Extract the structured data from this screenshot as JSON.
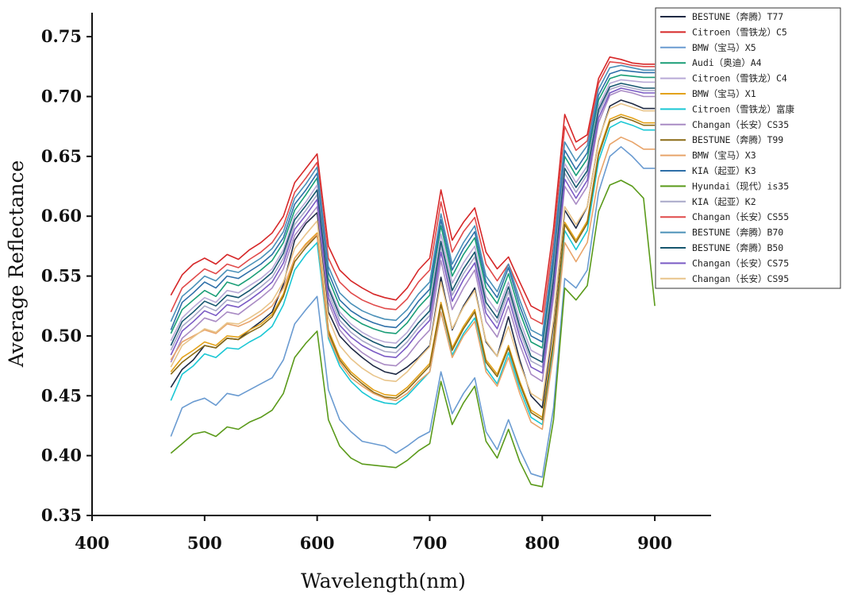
{
  "chart_data": {
    "type": "line",
    "title": "",
    "xlabel": "Wavelength(nm)",
    "ylabel": "Average Reflectance",
    "xlim": [
      400,
      950
    ],
    "ylim": [
      0.35,
      0.77
    ],
    "xticks": [
      "400",
      "500",
      "600",
      "700",
      "800",
      "900"
    ],
    "yticks": [
      "0.35",
      "0.40",
      "0.45",
      "0.50",
      "0.55",
      "0.60",
      "0.65",
      "0.70",
      "0.75"
    ],
    "legend_position": "top-right",
    "grid": false,
    "x": [
      470,
      480,
      490,
      500,
      510,
      520,
      530,
      540,
      550,
      560,
      570,
      580,
      590,
      600,
      610,
      620,
      630,
      640,
      650,
      660,
      670,
      680,
      690,
      700,
      710,
      720,
      730,
      740,
      750,
      760,
      770,
      780,
      790,
      800,
      810,
      820,
      830,
      840,
      850,
      860,
      870,
      880,
      890,
      900
    ],
    "series": [
      {
        "name": "BESTUNE（奔腾）T77",
        "color": "#1f2a44",
        "values": [
          0.457,
          0.472,
          0.48,
          0.492,
          0.49,
          0.498,
          0.497,
          0.505,
          0.512,
          0.52,
          0.543,
          0.58,
          0.594,
          0.603,
          0.52,
          0.5,
          0.49,
          0.482,
          0.475,
          0.47,
          0.468,
          0.474,
          0.482,
          0.492,
          0.549,
          0.505,
          0.525,
          0.54,
          0.495,
          0.483,
          0.516,
          0.48,
          0.45,
          0.44,
          0.51,
          0.605,
          0.59,
          0.608,
          0.663,
          0.692,
          0.697,
          0.694,
          0.69,
          0.69
        ]
      },
      {
        "name": "Citroen（雪铁龙）C5",
        "color": "#d62728",
        "values": [
          0.534,
          0.551,
          0.56,
          0.565,
          0.56,
          0.568,
          0.564,
          0.572,
          0.578,
          0.586,
          0.6,
          0.628,
          0.64,
          0.652,
          0.575,
          0.555,
          0.546,
          0.54,
          0.535,
          0.532,
          0.53,
          0.54,
          0.555,
          0.565,
          0.622,
          0.58,
          0.595,
          0.607,
          0.57,
          0.556,
          0.566,
          0.545,
          0.525,
          0.52,
          0.59,
          0.685,
          0.662,
          0.668,
          0.715,
          0.733,
          0.731,
          0.728,
          0.727,
          0.727
        ]
      },
      {
        "name": "BMW（宝马）X5",
        "color": "#6a9bd1",
        "values": [
          0.416,
          0.44,
          0.445,
          0.448,
          0.442,
          0.452,
          0.45,
          0.455,
          0.46,
          0.465,
          0.48,
          0.51,
          0.522,
          0.533,
          0.455,
          0.43,
          0.42,
          0.412,
          0.41,
          0.408,
          0.402,
          0.408,
          0.415,
          0.42,
          0.47,
          0.435,
          0.452,
          0.465,
          0.42,
          0.405,
          0.43,
          0.405,
          0.385,
          0.382,
          0.44,
          0.548,
          0.54,
          0.555,
          0.62,
          0.65,
          0.658,
          0.65,
          0.64,
          0.64
        ]
      },
      {
        "name": "Audi（奥迪）A4",
        "color": "#1a9e77",
        "values": [
          0.502,
          0.522,
          0.53,
          0.538,
          0.533,
          0.545,
          0.542,
          0.548,
          0.555,
          0.563,
          0.578,
          0.605,
          0.618,
          0.632,
          0.548,
          0.525,
          0.516,
          0.51,
          0.506,
          0.503,
          0.502,
          0.511,
          0.524,
          0.534,
          0.592,
          0.55,
          0.568,
          0.582,
          0.54,
          0.527,
          0.552,
          0.52,
          0.495,
          0.49,
          0.56,
          0.65,
          0.634,
          0.648,
          0.697,
          0.715,
          0.718,
          0.717,
          0.716,
          0.716
        ]
      },
      {
        "name": "Citroen（雪铁龙）C4",
        "color": "#b8a9d6",
        "values": [
          0.496,
          0.515,
          0.524,
          0.532,
          0.528,
          0.538,
          0.536,
          0.542,
          0.548,
          0.556,
          0.572,
          0.6,
          0.612,
          0.626,
          0.542,
          0.52,
          0.51,
          0.503,
          0.498,
          0.495,
          0.494,
          0.503,
          0.516,
          0.526,
          0.585,
          0.544,
          0.561,
          0.575,
          0.533,
          0.52,
          0.545,
          0.513,
          0.488,
          0.483,
          0.553,
          0.644,
          0.628,
          0.642,
          0.692,
          0.711,
          0.714,
          0.713,
          0.712,
          0.712
        ]
      },
      {
        "name": "BMW（宝马）X1",
        "color": "#e3a21a",
        "values": [
          0.47,
          0.482,
          0.488,
          0.495,
          0.492,
          0.5,
          0.499,
          0.505,
          0.51,
          0.518,
          0.535,
          0.565,
          0.577,
          0.586,
          0.505,
          0.482,
          0.47,
          0.462,
          0.455,
          0.451,
          0.45,
          0.457,
          0.467,
          0.477,
          0.528,
          0.49,
          0.508,
          0.522,
          0.48,
          0.468,
          0.492,
          0.462,
          0.438,
          0.432,
          0.498,
          0.595,
          0.58,
          0.596,
          0.653,
          0.681,
          0.685,
          0.682,
          0.678,
          0.678
        ]
      },
      {
        "name": "Citroen（雪铁龙）富康",
        "color": "#1ac7d4",
        "values": [
          0.446,
          0.468,
          0.475,
          0.485,
          0.482,
          0.49,
          0.489,
          0.495,
          0.5,
          0.508,
          0.526,
          0.555,
          0.568,
          0.578,
          0.498,
          0.475,
          0.462,
          0.453,
          0.447,
          0.444,
          0.443,
          0.45,
          0.46,
          0.47,
          0.52,
          0.484,
          0.502,
          0.515,
          0.473,
          0.46,
          0.486,
          0.456,
          0.432,
          0.426,
          0.49,
          0.588,
          0.572,
          0.588,
          0.646,
          0.674,
          0.679,
          0.676,
          0.672,
          0.672
        ]
      },
      {
        "name": "Changan（长安）CS35",
        "color": "#a98bc4",
        "values": [
          0.478,
          0.498,
          0.506,
          0.515,
          0.512,
          0.52,
          0.518,
          0.525,
          0.532,
          0.54,
          0.556,
          0.584,
          0.596,
          0.608,
          0.528,
          0.505,
          0.494,
          0.486,
          0.48,
          0.476,
          0.475,
          0.483,
          0.495,
          0.505,
          0.563,
          0.522,
          0.54,
          0.555,
          0.512,
          0.499,
          0.525,
          0.493,
          0.468,
          0.462,
          0.532,
          0.625,
          0.61,
          0.625,
          0.678,
          0.701,
          0.705,
          0.703,
          0.7,
          0.7
        ]
      },
      {
        "name": "BESTUNE（奔腾）T99",
        "color": "#8b6b16",
        "values": [
          0.468,
          0.478,
          0.485,
          0.492,
          0.49,
          0.498,
          0.497,
          0.503,
          0.508,
          0.516,
          0.533,
          0.562,
          0.574,
          0.584,
          0.503,
          0.48,
          0.468,
          0.46,
          0.453,
          0.449,
          0.448,
          0.455,
          0.465,
          0.475,
          0.526,
          0.488,
          0.506,
          0.52,
          0.478,
          0.466,
          0.49,
          0.46,
          0.436,
          0.43,
          0.496,
          0.593,
          0.578,
          0.594,
          0.651,
          0.679,
          0.683,
          0.68,
          0.676,
          0.676
        ]
      },
      {
        "name": "BMW（宝马）X3",
        "color": "#e8a46a",
        "values": [
          0.48,
          0.495,
          0.5,
          0.505,
          0.502,
          0.51,
          0.508,
          0.512,
          0.518,
          0.525,
          0.54,
          0.565,
          0.576,
          0.585,
          0.5,
          0.478,
          0.465,
          0.458,
          0.452,
          0.448,
          0.446,
          0.452,
          0.462,
          0.47,
          0.52,
          0.482,
          0.5,
          0.512,
          0.47,
          0.458,
          0.482,
          0.452,
          0.428,
          0.422,
          0.485,
          0.578,
          0.562,
          0.578,
          0.632,
          0.66,
          0.666,
          0.662,
          0.656,
          0.656
        ]
      },
      {
        "name": "KIA（起亚）K3",
        "color": "#2e6fa8",
        "values": [
          0.505,
          0.528,
          0.536,
          0.545,
          0.54,
          0.55,
          0.548,
          0.554,
          0.56,
          0.568,
          0.582,
          0.61,
          0.622,
          0.636,
          0.553,
          0.53,
          0.521,
          0.515,
          0.511,
          0.508,
          0.507,
          0.516,
          0.529,
          0.539,
          0.597,
          0.555,
          0.573,
          0.587,
          0.545,
          0.532,
          0.557,
          0.525,
          0.5,
          0.495,
          0.565,
          0.655,
          0.639,
          0.653,
          0.701,
          0.719,
          0.722,
          0.721,
          0.72,
          0.72
        ]
      },
      {
        "name": "Hyundai（现代）is35",
        "color": "#5a9a1a",
        "values": [
          0.402,
          0.41,
          0.418,
          0.42,
          0.416,
          0.424,
          0.422,
          0.428,
          0.432,
          0.438,
          0.452,
          0.482,
          0.494,
          0.504,
          0.43,
          0.408,
          0.398,
          0.393,
          0.392,
          0.391,
          0.39,
          0.396,
          0.404,
          0.41,
          0.462,
          0.426,
          0.444,
          0.458,
          0.412,
          0.398,
          0.422,
          0.395,
          0.376,
          0.374,
          0.43,
          0.54,
          0.53,
          0.542,
          0.604,
          0.626,
          0.63,
          0.625,
          0.615,
          0.525
        ]
      },
      {
        "name": "KIA（起亚）K2",
        "color": "#a8a8c8",
        "values": [
          0.488,
          0.508,
          0.516,
          0.525,
          0.521,
          0.53,
          0.528,
          0.534,
          0.541,
          0.549,
          0.565,
          0.593,
          0.605,
          0.618,
          0.536,
          0.513,
          0.503,
          0.496,
          0.491,
          0.487,
          0.486,
          0.495,
          0.507,
          0.517,
          0.575,
          0.534,
          0.552,
          0.566,
          0.524,
          0.511,
          0.537,
          0.504,
          0.479,
          0.474,
          0.544,
          0.636,
          0.62,
          0.635,
          0.686,
          0.706,
          0.709,
          0.707,
          0.705,
          0.705
        ]
      },
      {
        "name": "Changan（长安）CS55",
        "color": "#e04a4a",
        "values": [
          0.52,
          0.54,
          0.548,
          0.556,
          0.552,
          0.56,
          0.557,
          0.564,
          0.57,
          0.578,
          0.592,
          0.62,
          0.632,
          0.645,
          0.565,
          0.545,
          0.536,
          0.53,
          0.526,
          0.523,
          0.522,
          0.531,
          0.545,
          0.555,
          0.612,
          0.57,
          0.587,
          0.599,
          0.56,
          0.546,
          0.56,
          0.538,
          0.515,
          0.51,
          0.58,
          0.675,
          0.655,
          0.663,
          0.711,
          0.729,
          0.728,
          0.726,
          0.725,
          0.725
        ]
      },
      {
        "name": "BESTUNE（奔腾）B70",
        "color": "#4a90b8",
        "values": [
          0.512,
          0.533,
          0.541,
          0.55,
          0.546,
          0.555,
          0.553,
          0.559,
          0.565,
          0.573,
          0.587,
          0.615,
          0.627,
          0.641,
          0.558,
          0.536,
          0.527,
          0.521,
          0.517,
          0.514,
          0.513,
          0.522,
          0.535,
          0.545,
          0.602,
          0.56,
          0.578,
          0.592,
          0.55,
          0.537,
          0.56,
          0.53,
          0.505,
          0.5,
          0.572,
          0.662,
          0.646,
          0.659,
          0.706,
          0.724,
          0.726,
          0.724,
          0.722,
          0.722
        ]
      },
      {
        "name": "BESTUNE（奔腾）B50",
        "color": "#16566e",
        "values": [
          0.492,
          0.512,
          0.52,
          0.529,
          0.525,
          0.534,
          0.532,
          0.538,
          0.545,
          0.553,
          0.569,
          0.597,
          0.609,
          0.622,
          0.54,
          0.517,
          0.507,
          0.5,
          0.495,
          0.491,
          0.49,
          0.499,
          0.511,
          0.521,
          0.579,
          0.538,
          0.556,
          0.57,
          0.528,
          0.515,
          0.541,
          0.508,
          0.483,
          0.478,
          0.548,
          0.64,
          0.624,
          0.638,
          0.689,
          0.708,
          0.711,
          0.709,
          0.707,
          0.707
        ]
      },
      {
        "name": "Changan（长安）CS75",
        "color": "#7a5ac4",
        "values": [
          0.484,
          0.504,
          0.512,
          0.521,
          0.517,
          0.526,
          0.524,
          0.53,
          0.537,
          0.545,
          0.561,
          0.589,
          0.601,
          0.614,
          0.532,
          0.509,
          0.499,
          0.492,
          0.487,
          0.483,
          0.482,
          0.491,
          0.503,
          0.513,
          0.57,
          0.529,
          0.547,
          0.561,
          0.519,
          0.506,
          0.532,
          0.499,
          0.474,
          0.469,
          0.539,
          0.631,
          0.615,
          0.63,
          0.682,
          0.703,
          0.707,
          0.705,
          0.703,
          0.703
        ]
      },
      {
        "name": "Changan（长安）CS95",
        "color": "#e8c48a",
        "values": [
          0.474,
          0.492,
          0.499,
          0.506,
          0.503,
          0.511,
          0.51,
          0.515,
          0.521,
          0.529,
          0.545,
          0.573,
          0.585,
          0.596,
          0.515,
          0.492,
          0.481,
          0.473,
          0.467,
          0.463,
          0.462,
          0.47,
          0.481,
          0.491,
          0.545,
          0.506,
          0.524,
          0.538,
          0.496,
          0.483,
          0.508,
          0.477,
          0.452,
          0.446,
          0.514,
          0.608,
          0.593,
          0.608,
          0.664,
          0.69,
          0.694,
          0.691,
          0.688,
          0.688
        ]
      }
    ]
  }
}
